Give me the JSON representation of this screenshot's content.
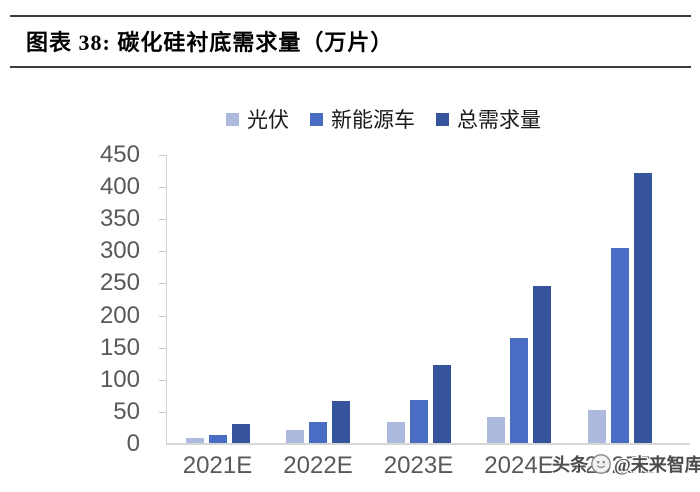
{
  "header": {
    "title": "图表 38:  碳化硅衬底需求量（万片）"
  },
  "chart_data": {
    "type": "bar",
    "title": "碳化硅衬底需求量（万片）",
    "categories": [
      "2021E",
      "2022E",
      "2023E",
      "2024E",
      "2025E"
    ],
    "series": [
      {
        "name": "光伏",
        "color": "#aeb9de",
        "values": [
          8,
          20,
          33,
          40,
          52
        ]
      },
      {
        "name": "新能源车",
        "color": "#4a6dc4",
        "values": [
          13,
          32,
          67,
          163,
          304
        ]
      },
      {
        "name": "总需求量",
        "color": "#36549b",
        "values": [
          30,
          65,
          122,
          245,
          420
        ]
      }
    ],
    "ylim": [
      0,
      450
    ],
    "ytick_step": 50,
    "ytick_labels": [
      "450",
      "400",
      "350",
      "300",
      "250",
      "200",
      "150",
      "100",
      "50",
      "0"
    ],
    "grid": false,
    "legend_position": "top-center"
  },
  "watermark": {
    "prefix": "头条",
    "suffix": "@未来智库"
  },
  "colors": {
    "axis_text": "#595959",
    "axis_line": "#d2d2d2",
    "title_rule": "#3d3d3d"
  }
}
